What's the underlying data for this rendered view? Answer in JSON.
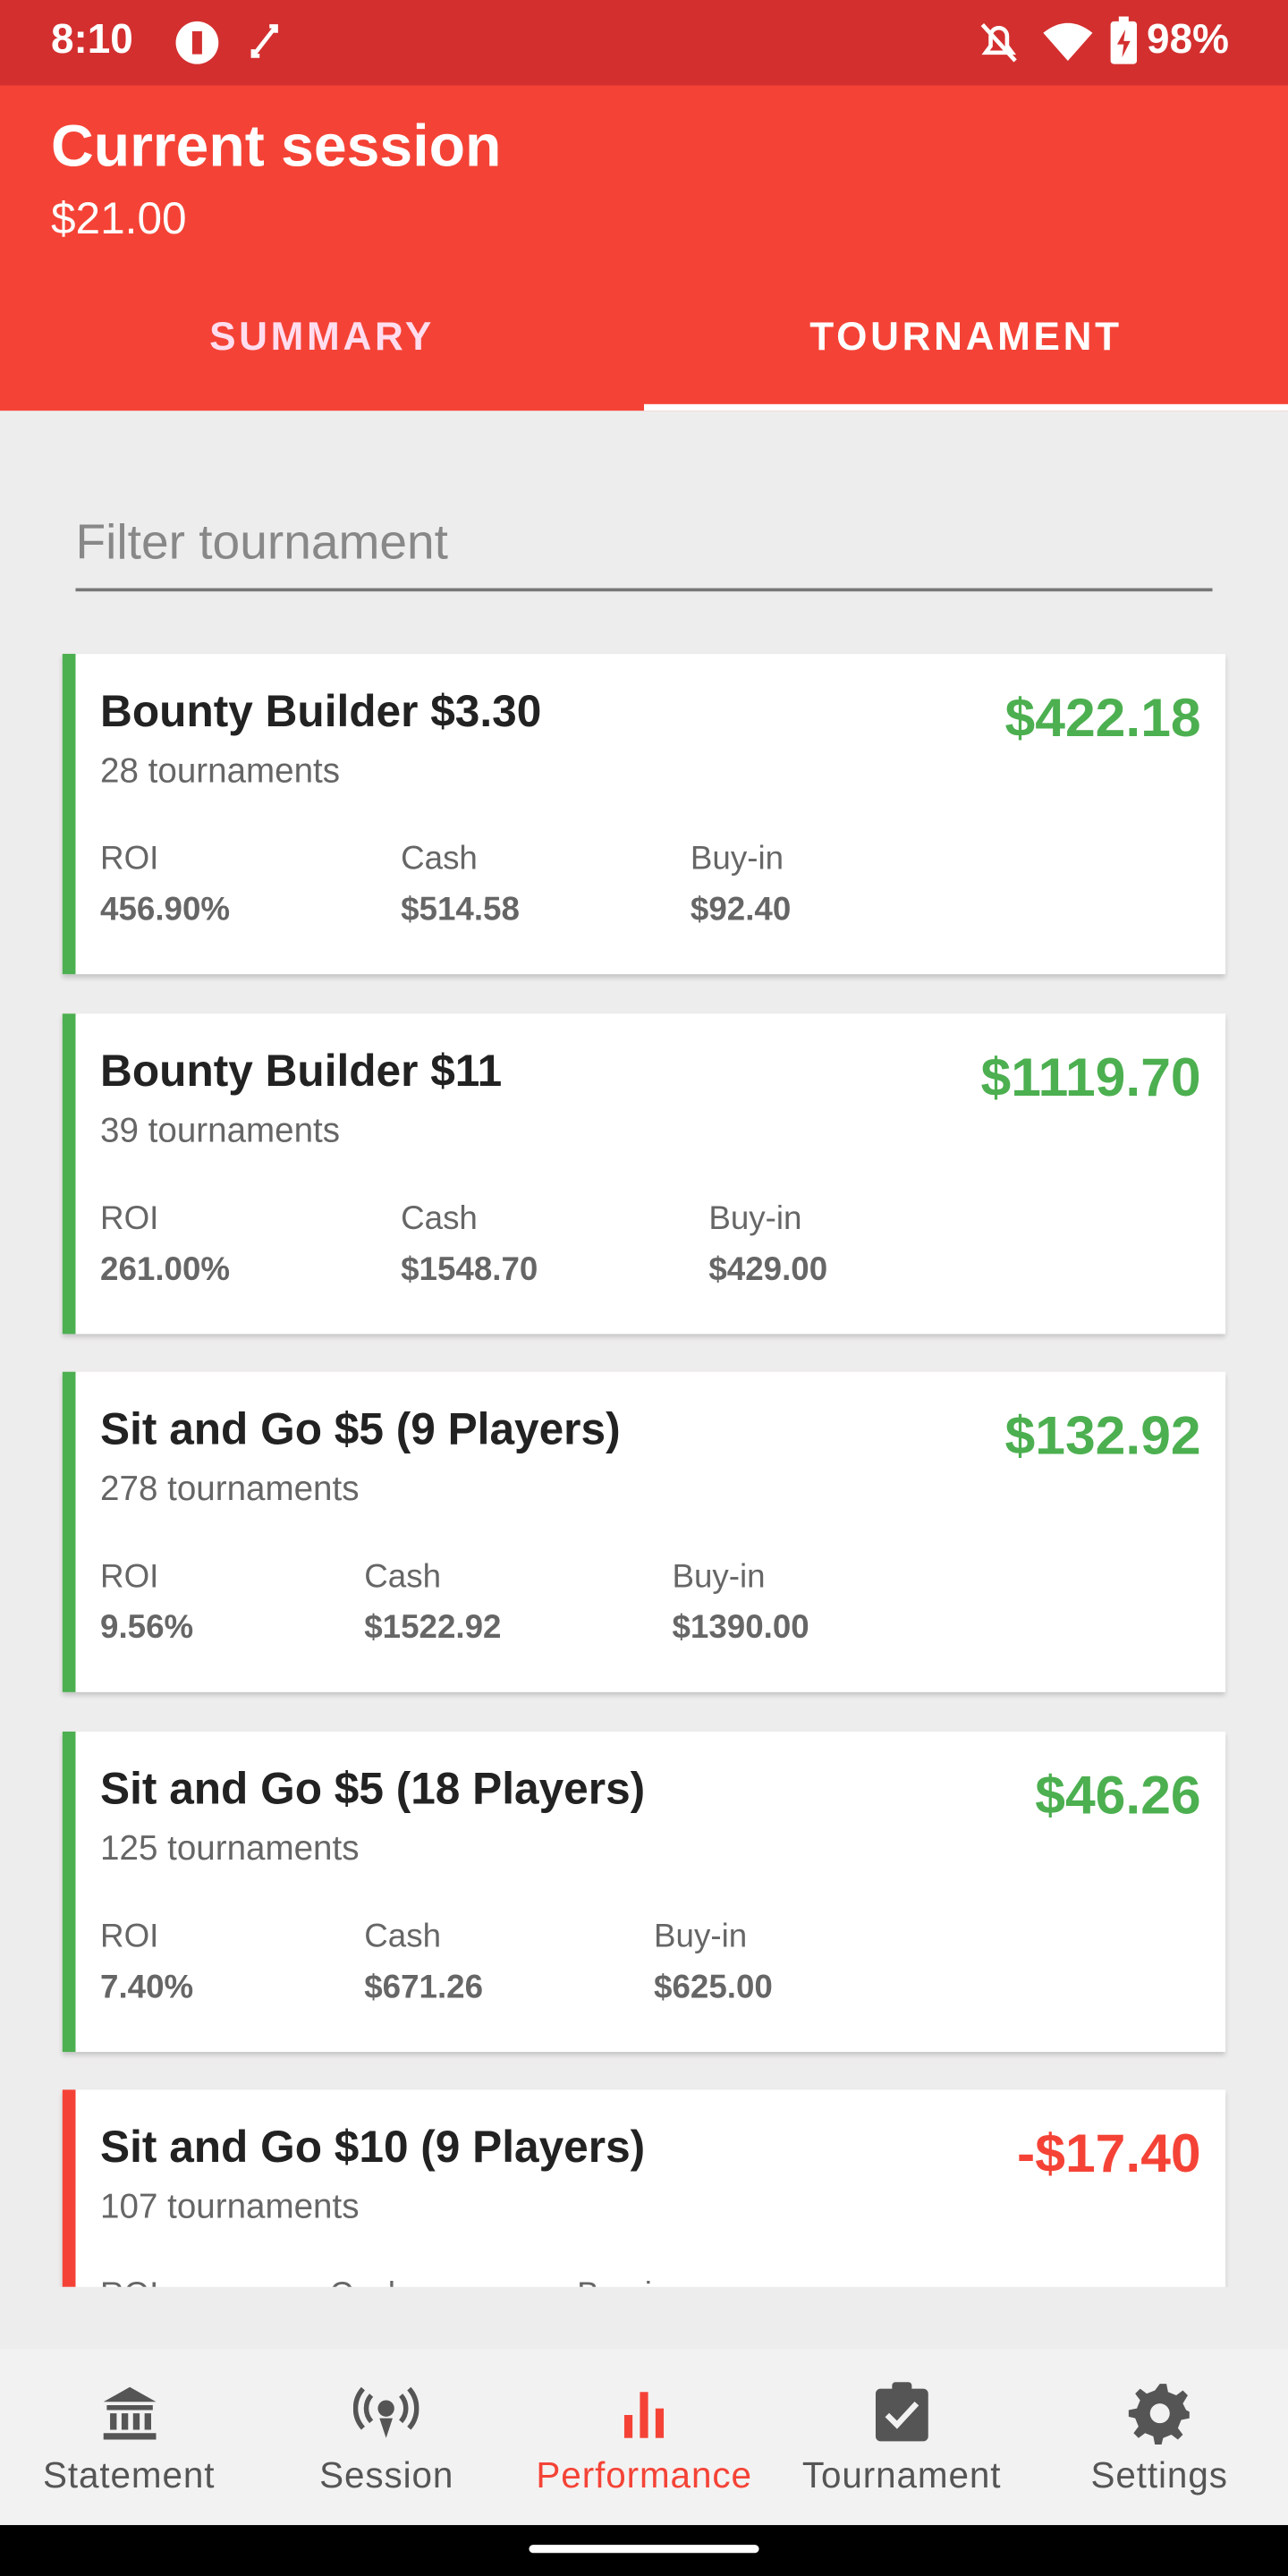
{
  "status_bar": {
    "time": "8:10",
    "battery": "98%"
  },
  "header": {
    "title": "Current session",
    "amount": "$21.00"
  },
  "tabs": [
    "SUMMARY",
    "TOURNAMENT"
  ],
  "filter": {
    "placeholder": "Filter tournament"
  },
  "cards": [
    {
      "name": "Bounty Builder $3.30",
      "count": "28 tournaments",
      "profit": "$422.18",
      "status": "positive",
      "stats": [
        {
          "label": "ROI",
          "value": "456.90%"
        },
        {
          "label": "Cash",
          "value": "$514.58"
        },
        {
          "label": "Buy-in",
          "value": "$92.40"
        }
      ]
    },
    {
      "name": "Bounty Builder $11",
      "count": "39 tournaments",
      "profit": "$1119.70",
      "status": "positive",
      "stats": [
        {
          "label": "ROI",
          "value": "261.00%"
        },
        {
          "label": "Cash",
          "value": "$1548.70"
        },
        {
          "label": "Buy-in",
          "value": "$429.00"
        }
      ]
    },
    {
      "name": "Sit and Go $5 (9 Players)",
      "count": "278 tournaments",
      "profit": "$132.92",
      "status": "positive",
      "stats": [
        {
          "label": "ROI",
          "value": "9.56%"
        },
        {
          "label": "Cash",
          "value": "$1522.92"
        },
        {
          "label": "Buy-in",
          "value": "$1390.00"
        }
      ]
    },
    {
      "name": "Sit and Go $5 (18 Players)",
      "count": "125 tournaments",
      "profit": "$46.26",
      "status": "positive",
      "stats": [
        {
          "label": "ROI",
          "value": "7.40%"
        },
        {
          "label": "Cash",
          "value": "$671.26"
        },
        {
          "label": "Buy-in",
          "value": "$625.00"
        }
      ]
    },
    {
      "name": "Sit and Go $10 (9 Players)",
      "count": "107 tournaments",
      "profit": "-$17.40",
      "status": "negative",
      "stats": [
        {
          "label": "ROI"
        },
        {
          "label": "Cash"
        },
        {
          "label": "Buy-in"
        }
      ]
    }
  ],
  "nav": {
    "active": 2,
    "items": [
      "Statement",
      "Session",
      "Performance",
      "Tournament",
      "Settings"
    ]
  }
}
